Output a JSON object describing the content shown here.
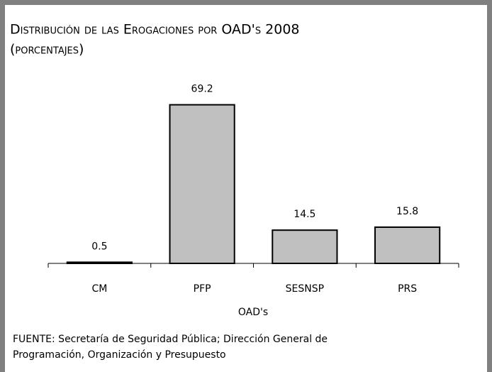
{
  "chart_data": {
    "type": "bar",
    "title": "Distribución de las Erogaciones por OAD's 2008",
    "subtitle": "(porcentajes)",
    "categories": [
      "CM",
      "PFP",
      "SESNSP",
      "PRS"
    ],
    "values": [
      0.5,
      69.2,
      14.5,
      15.8
    ],
    "color": "#c0c0c0",
    "ylim": [
      0,
      70
    ],
    "x_label": "OAD's",
    "source": [
      "FUENTE: Secretaría de Seguridad Pública; Dirección General de",
      "Programación, Organización y Presupuesto"
    ]
  }
}
